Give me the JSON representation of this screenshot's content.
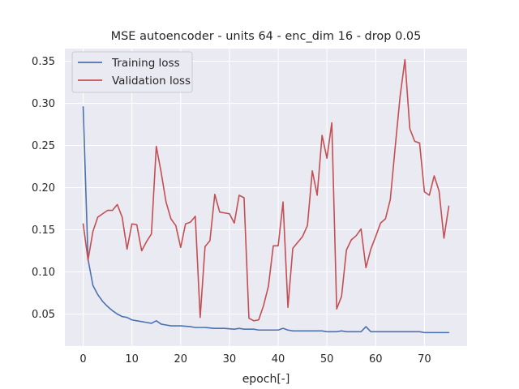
{
  "chart_data": {
    "type": "line",
    "title": "MSE autoencoder - units 64 - enc_dim 16 - drop 0.05",
    "xlabel": "epoch[-]",
    "ylabel": "",
    "xlim": [
      -3.75,
      78.75
    ],
    "ylim": [
      0.012,
      0.365
    ],
    "xticks": [
      0,
      10,
      20,
      30,
      40,
      50,
      60,
      70
    ],
    "yticks": [
      0.05,
      0.1,
      0.15,
      0.2,
      0.25,
      0.3,
      0.35
    ],
    "ytick_labels": [
      "0.05",
      "0.10",
      "0.15",
      "0.20",
      "0.25",
      "0.30",
      "0.35"
    ],
    "grid": true,
    "legend_position": "top-left",
    "x": [
      0,
      1,
      2,
      3,
      4,
      5,
      6,
      7,
      8,
      9,
      10,
      11,
      12,
      13,
      14,
      15,
      16,
      17,
      18,
      19,
      20,
      21,
      22,
      23,
      24,
      25,
      26,
      27,
      28,
      29,
      30,
      31,
      32,
      33,
      34,
      35,
      36,
      37,
      38,
      39,
      40,
      41,
      42,
      43,
      44,
      45,
      46,
      47,
      48,
      49,
      50,
      51,
      52,
      53,
      54,
      55,
      56,
      57,
      58,
      59,
      60,
      61,
      62,
      63,
      64,
      65,
      66,
      67,
      68,
      69,
      70,
      71,
      72,
      73,
      74,
      75
    ],
    "series": [
      {
        "name": "Training loss",
        "color": "#4c72b0",
        "values": [
          0.296,
          0.115,
          0.084,
          0.073,
          0.065,
          0.059,
          0.054,
          0.05,
          0.047,
          0.046,
          0.043,
          0.042,
          0.041,
          0.04,
          0.039,
          0.042,
          0.038,
          0.037,
          0.036,
          0.036,
          0.036,
          0.0355,
          0.035,
          0.034,
          0.034,
          0.034,
          0.0335,
          0.033,
          0.033,
          0.033,
          0.0325,
          0.032,
          0.033,
          0.032,
          0.032,
          0.032,
          0.031,
          0.031,
          0.031,
          0.031,
          0.031,
          0.033,
          0.031,
          0.03,
          0.03,
          0.03,
          0.03,
          0.03,
          0.03,
          0.03,
          0.029,
          0.029,
          0.029,
          0.03,
          0.029,
          0.029,
          0.029,
          0.029,
          0.035,
          0.029,
          0.029,
          0.029,
          0.029,
          0.029,
          0.029,
          0.029,
          0.029,
          0.029,
          0.029,
          0.029,
          0.028,
          0.028,
          0.028,
          0.028,
          0.028,
          0.028
        ]
      },
      {
        "name": "Validation loss",
        "color": "#c44e52",
        "values": [
          0.157,
          0.114,
          0.148,
          0.165,
          0.169,
          0.173,
          0.173,
          0.18,
          0.165,
          0.127,
          0.157,
          0.156,
          0.125,
          0.136,
          0.145,
          0.249,
          0.218,
          0.183,
          0.163,
          0.155,
          0.129,
          0.157,
          0.159,
          0.166,
          0.046,
          0.13,
          0.137,
          0.192,
          0.171,
          0.17,
          0.169,
          0.158,
          0.191,
          0.188,
          0.045,
          0.042,
          0.043,
          0.06,
          0.083,
          0.131,
          0.131,
          0.183,
          0.058,
          0.128,
          0.135,
          0.142,
          0.155,
          0.22,
          0.191,
          0.262,
          0.235,
          0.277,
          0.056,
          0.071,
          0.126,
          0.138,
          0.143,
          0.151,
          0.105,
          0.127,
          0.142,
          0.158,
          0.163,
          0.186,
          0.248,
          0.308,
          0.352,
          0.27,
          0.255,
          0.253,
          0.195,
          0.191,
          0.214,
          0.196,
          0.14,
          0.178
        ]
      }
    ]
  },
  "style": {
    "background": "#eaeaf2",
    "grid_color": "#ffffff",
    "legend_background": "#eaeaf2",
    "legend_border": "#cccccc"
  }
}
